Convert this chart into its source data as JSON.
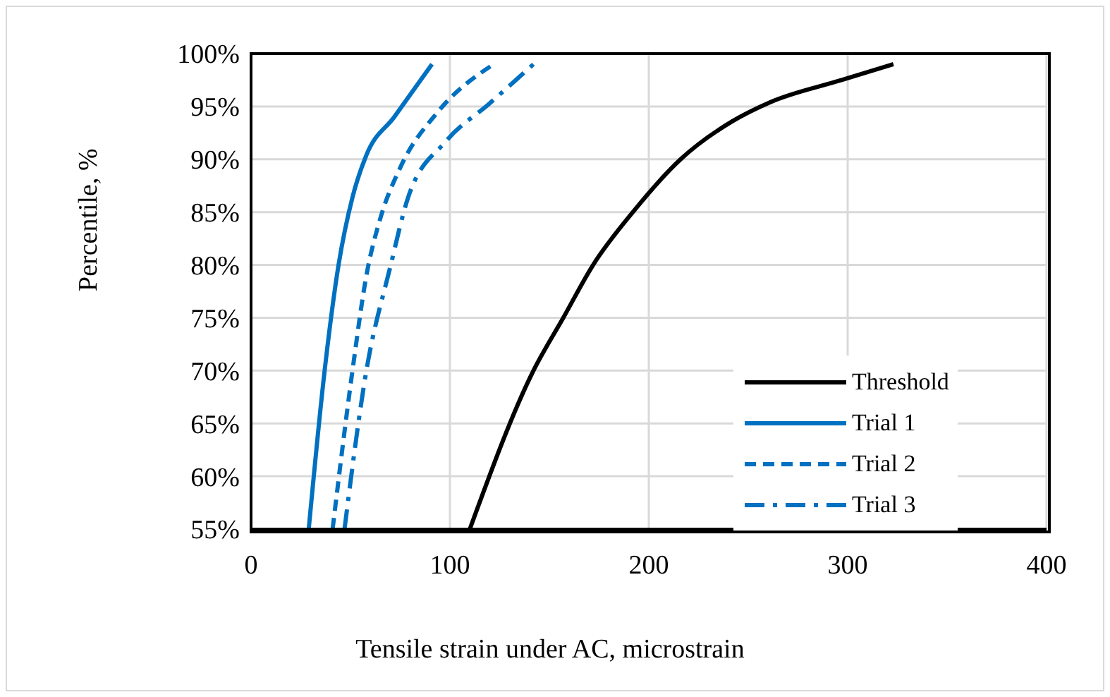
{
  "chart_data": {
    "type": "line",
    "xlabel": "Tensile strain under AC, microstrain",
    "ylabel": "Percentile, %",
    "xlim": [
      0,
      400
    ],
    "xticks": [
      0,
      100,
      200,
      300,
      400
    ],
    "ylim": [
      55,
      100
    ],
    "yticks": [
      {
        "value": 55,
        "label": "55%"
      },
      {
        "value": 60,
        "label": "60%"
      },
      {
        "value": 65,
        "label": "65%"
      },
      {
        "value": 70,
        "label": "70%"
      },
      {
        "value": 75,
        "label": "75%"
      },
      {
        "value": 80,
        "label": "80%"
      },
      {
        "value": 85,
        "label": "85%"
      },
      {
        "value": 90,
        "label": "90%"
      },
      {
        "value": 95,
        "label": "95%"
      },
      {
        "value": 100,
        "label": "100%"
      }
    ],
    "grid": true,
    "legend": "bottom right",
    "marker": "none",
    "series": [
      {
        "name": "Threshold",
        "color": "#000000",
        "line_style": "solid",
        "x": [
          110,
          142,
          157,
          172,
          192,
          216,
          242,
          261,
          297,
          323
        ],
        "values": [
          55,
          70,
          75,
          80,
          85,
          90,
          93.6,
          95.4,
          97.5,
          99
        ]
      },
      {
        "name": "Trial 1",
        "color": "#0070c0",
        "line_style": "solid",
        "x": [
          29,
          37,
          44,
          51,
          58,
          72,
          91
        ],
        "values": [
          55,
          70,
          80,
          86.4,
          90.4,
          94,
          99
        ]
      },
      {
        "name": "Trial 2",
        "color": "#0070c0",
        "line_style": "dashed",
        "x": [
          41,
          51,
          58,
          65,
          75,
          94,
          122
        ],
        "values": [
          55,
          70,
          79,
          84.4,
          89.2,
          94.5,
          99
        ]
      },
      {
        "name": "Trial 3",
        "color": "#0070c0",
        "line_style": "dashdot",
        "x": [
          47,
          58,
          70,
          79,
          98,
          120,
          142
        ],
        "values": [
          55,
          70,
          79.8,
          86.4,
          91.7,
          95.3,
          99
        ]
      }
    ]
  }
}
